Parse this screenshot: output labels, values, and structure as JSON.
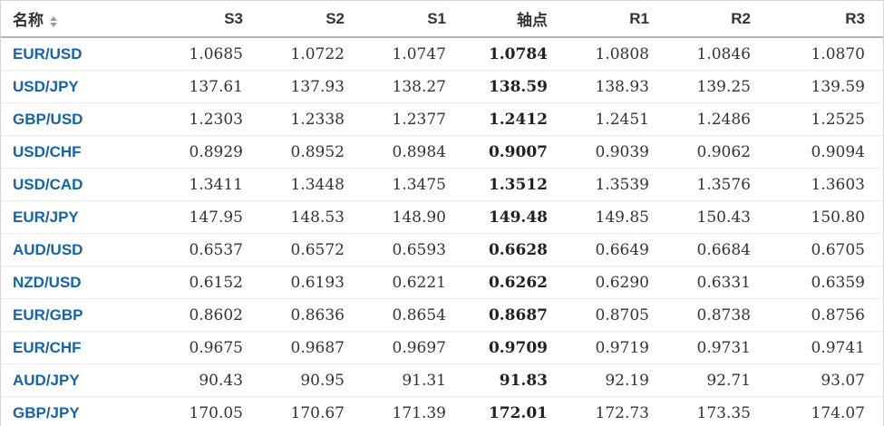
{
  "colors": {
    "pair_link_blue": "#1563a9",
    "header_border_gray": "#b3b3b3",
    "row_border_gray": "#eaeaea",
    "text_dark": "#333333"
  },
  "icons": {
    "name_header_sort": "sort-arrows-icon"
  },
  "table": {
    "columns": [
      {
        "key": "name",
        "label": "名称"
      },
      {
        "key": "s3",
        "label": "S3"
      },
      {
        "key": "s2",
        "label": "S2"
      },
      {
        "key": "s1",
        "label": "S1"
      },
      {
        "key": "pivot",
        "label": "轴点"
      },
      {
        "key": "r1",
        "label": "R1"
      },
      {
        "key": "r2",
        "label": "R2"
      },
      {
        "key": "r3",
        "label": "R3"
      }
    ],
    "rows": [
      {
        "name": "EUR/USD",
        "s3": "1.0685",
        "s2": "1.0722",
        "s1": "1.0747",
        "pivot": "1.0784",
        "r1": "1.0808",
        "r2": "1.0846",
        "r3": "1.0870"
      },
      {
        "name": "USD/JPY",
        "s3": "137.61",
        "s2": "137.93",
        "s1": "138.27",
        "pivot": "138.59",
        "r1": "138.93",
        "r2": "139.25",
        "r3": "139.59"
      },
      {
        "name": "GBP/USD",
        "s3": "1.2303",
        "s2": "1.2338",
        "s1": "1.2377",
        "pivot": "1.2412",
        "r1": "1.2451",
        "r2": "1.2486",
        "r3": "1.2525"
      },
      {
        "name": "USD/CHF",
        "s3": "0.8929",
        "s2": "0.8952",
        "s1": "0.8984",
        "pivot": "0.9007",
        "r1": "0.9039",
        "r2": "0.9062",
        "r3": "0.9094"
      },
      {
        "name": "USD/CAD",
        "s3": "1.3411",
        "s2": "1.3448",
        "s1": "1.3475",
        "pivot": "1.3512",
        "r1": "1.3539",
        "r2": "1.3576",
        "r3": "1.3603"
      },
      {
        "name": "EUR/JPY",
        "s3": "147.95",
        "s2": "148.53",
        "s1": "148.90",
        "pivot": "149.48",
        "r1": "149.85",
        "r2": "150.43",
        "r3": "150.80"
      },
      {
        "name": "AUD/USD",
        "s3": "0.6537",
        "s2": "0.6572",
        "s1": "0.6593",
        "pivot": "0.6628",
        "r1": "0.6649",
        "r2": "0.6684",
        "r3": "0.6705"
      },
      {
        "name": "NZD/USD",
        "s3": "0.6152",
        "s2": "0.6193",
        "s1": "0.6221",
        "pivot": "0.6262",
        "r1": "0.6290",
        "r2": "0.6331",
        "r3": "0.6359"
      },
      {
        "name": "EUR/GBP",
        "s3": "0.8602",
        "s2": "0.8636",
        "s1": "0.8654",
        "pivot": "0.8687",
        "r1": "0.8705",
        "r2": "0.8738",
        "r3": "0.8756"
      },
      {
        "name": "EUR/CHF",
        "s3": "0.9675",
        "s2": "0.9687",
        "s1": "0.9697",
        "pivot": "0.9709",
        "r1": "0.9719",
        "r2": "0.9731",
        "r3": "0.9741"
      },
      {
        "name": "AUD/JPY",
        "s3": "90.43",
        "s2": "90.95",
        "s1": "91.31",
        "pivot": "91.83",
        "r1": "92.19",
        "r2": "92.71",
        "r3": "93.07"
      },
      {
        "name": "GBP/JPY",
        "s3": "170.05",
        "s2": "170.67",
        "s1": "171.39",
        "pivot": "172.01",
        "r1": "172.73",
        "r2": "173.35",
        "r3": "174.07"
      }
    ]
  }
}
